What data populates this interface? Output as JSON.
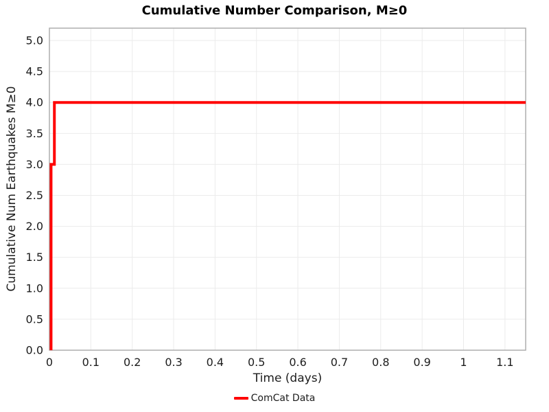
{
  "chart_data": {
    "type": "line",
    "title": "Cumulative Number Comparison, M≥0",
    "xlabel": "Time (days)",
    "ylabel": "Cumulative Num Earthquakes M≥0",
    "xlim": [
      0,
      1.15
    ],
    "ylim": [
      0,
      5.2
    ],
    "x_tick_values": [
      0,
      0.1,
      0.2,
      0.3,
      0.4,
      0.5,
      0.6,
      0.7,
      0.8,
      0.9,
      1.0,
      1.1
    ],
    "x_tick_labels": [
      "0",
      "0.1",
      "0.2",
      "0.3",
      "0.4",
      "0.5",
      "0.6",
      "0.7",
      "0.8",
      "0.9",
      "1",
      "1.1"
    ],
    "y_tick_values": [
      0,
      0.5,
      1.0,
      1.5,
      2.0,
      2.5,
      3.0,
      3.5,
      4.0,
      4.5,
      5.0
    ],
    "y_tick_labels": [
      "0.0",
      "0.5",
      "1.0",
      "1.5",
      "2.0",
      "2.5",
      "3.0",
      "3.5",
      "4.0",
      "4.5",
      "5.0"
    ],
    "grid": true,
    "grid_color": "#ebebeb",
    "axis_color": "#a8a8a8",
    "legend_position": "bottom-center",
    "series": [
      {
        "name": "ComCat Data",
        "color": "#ff0000",
        "line_width": 4,
        "step_points": [
          [
            0.004,
            0
          ],
          [
            0.004,
            3
          ],
          [
            0.012,
            3
          ],
          [
            0.012,
            4
          ],
          [
            1.15,
            4
          ]
        ],
        "description": "Cumulative earthquake count: reaches 3 at ~0.004 days, 4 at ~0.012 days, stays at 4 through ~1.15 days"
      }
    ]
  }
}
